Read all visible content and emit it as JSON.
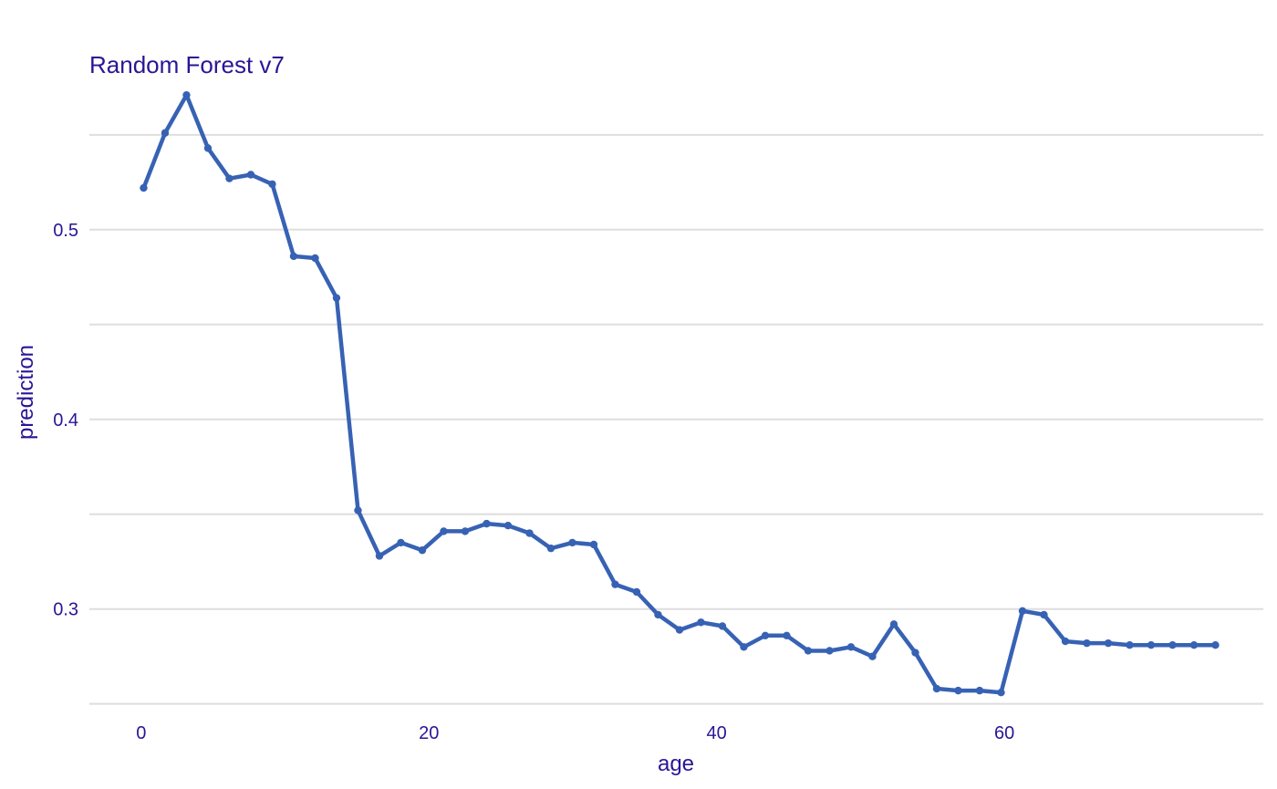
{
  "chart_data": {
    "type": "line",
    "title": "Random Forest v7",
    "xlabel": "age",
    "ylabel": "prediction",
    "xlim": [
      -3.6,
      78
    ],
    "ylim": [
      0.246,
      0.573
    ],
    "xticks": [
      0,
      20,
      40,
      60
    ],
    "xtick_labels": [
      "0",
      "20",
      "40",
      "60"
    ],
    "yticks": [
      0.3,
      0.4,
      0.5
    ],
    "ytick_labels": [
      "0.3",
      "0.4",
      "0.5"
    ],
    "grid": true,
    "colors": {
      "line": "#3762b4",
      "text": "#2a1596",
      "grid": "#dedede"
    },
    "series": [
      {
        "x": [
          0.17,
          1.66,
          3.15,
          4.64,
          6.13,
          7.62,
          9.11,
          10.6,
          12.09,
          13.58,
          15.07,
          16.56,
          18.05,
          19.54,
          21.03,
          22.52,
          24.01,
          25.5,
          26.99,
          28.48,
          29.97,
          31.46,
          32.95,
          34.44,
          35.93,
          37.42,
          38.91,
          40.4,
          41.89,
          43.38,
          44.87,
          46.36,
          47.85,
          49.34,
          50.83,
          52.32,
          53.81,
          55.3,
          56.79,
          58.28,
          59.77,
          61.26,
          62.75,
          64.24,
          65.73,
          67.22,
          68.71,
          70.2,
          71.69,
          73.18,
          74.67
        ],
        "y": [
          0.522,
          0.551,
          0.571,
          0.543,
          0.527,
          0.529,
          0.524,
          0.486,
          0.485,
          0.464,
          0.352,
          0.328,
          0.335,
          0.331,
          0.341,
          0.341,
          0.345,
          0.344,
          0.34,
          0.332,
          0.335,
          0.334,
          0.313,
          0.309,
          0.297,
          0.289,
          0.293,
          0.291,
          0.28,
          0.286,
          0.286,
          0.278,
          0.278,
          0.28,
          0.275,
          0.292,
          0.277,
          0.258,
          0.257,
          0.257,
          0.256,
          0.299,
          0.297,
          0.283,
          0.282,
          0.282,
          0.281,
          0.281,
          0.281,
          0.281,
          0.281
        ]
      }
    ]
  }
}
